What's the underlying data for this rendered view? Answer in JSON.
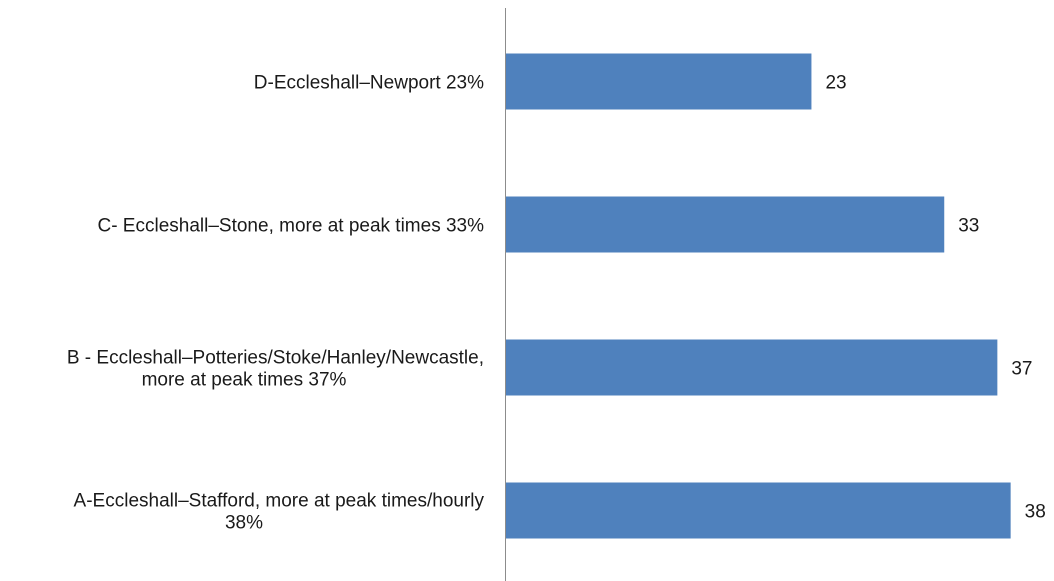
{
  "chart_data": {
    "type": "bar",
    "orientation": "horizontal",
    "categories": [
      [
        "D-Eccleshall–Newport  23%"
      ],
      [
        "C- Eccleshall–Stone, more at peak times  33%"
      ],
      [
        "B - Eccleshall–Potteries/Stoke/Hanley/Newcastle,",
        "more at peak times 37%"
      ],
      [
        "A-Eccleshall–Stafford, more at peak times/hourly",
        "38%"
      ]
    ],
    "values": [
      23,
      33,
      37,
      38
    ],
    "data_labels": [
      "23",
      "33",
      "37",
      "38"
    ],
    "title": "",
    "xlabel": "",
    "ylabel": "",
    "xlim": [
      0,
      40
    ],
    "grid": false,
    "legend": "none",
    "bar_color": "#4F81BD",
    "axis_color": "#8c8c8c"
  }
}
